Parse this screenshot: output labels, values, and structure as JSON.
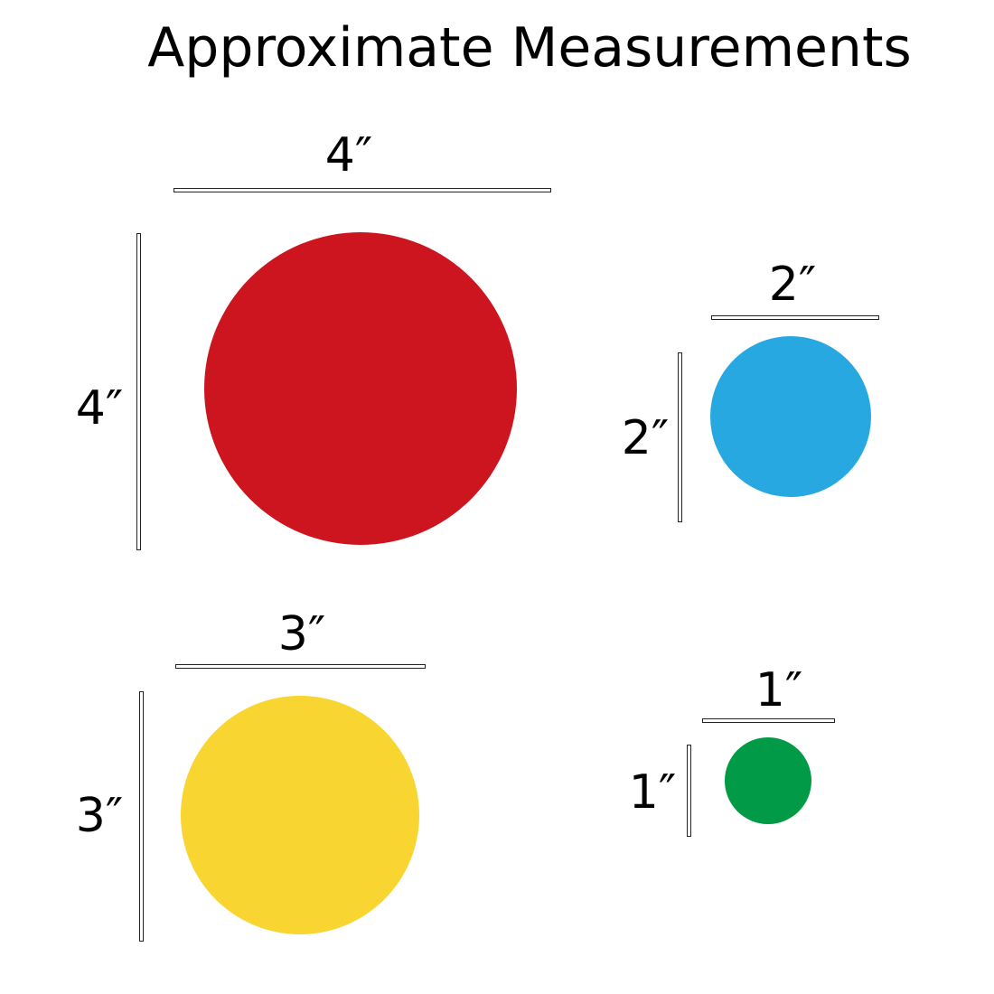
{
  "title": "Approximate Measurements",
  "items": [
    {
      "size_label": "4″",
      "width_label": "4″",
      "height_label": "4″",
      "diameter_in": 4,
      "color": "#cc151e"
    },
    {
      "size_label": "2″",
      "width_label": "2″",
      "height_label": "2″",
      "diameter_in": 2,
      "color": "#27a8e0"
    },
    {
      "size_label": "3″",
      "width_label": "3″",
      "height_label": "3″",
      "diameter_in": 3,
      "color": "#f8d531"
    },
    {
      "size_label": "1″",
      "width_label": "1″",
      "height_label": "1″",
      "diameter_in": 1,
      "color": "#019a46"
    }
  ]
}
